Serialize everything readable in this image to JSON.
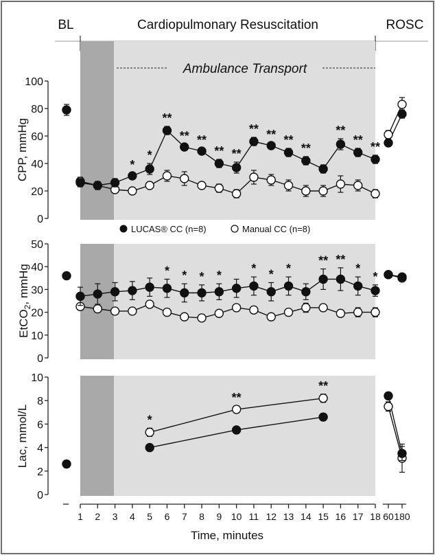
{
  "header": {
    "phases": [
      "BL",
      "Cardiopulmonary Resuscitation",
      "ROSC"
    ],
    "transport_label": "Ambulance Transport"
  },
  "legend": {
    "lucas": "LUCAS® CC (n=8)",
    "manual": "Manual CC (n=8)"
  },
  "x_axis": {
    "label": "Time, minutes",
    "cpr_ticks": [
      "1",
      "2",
      "3",
      "4",
      "5",
      "6",
      "7",
      "8",
      "9",
      "10",
      "11",
      "12",
      "13",
      "14",
      "15",
      "16",
      "17",
      "18"
    ],
    "rosc_ticks": [
      "60",
      "180"
    ]
  },
  "colors": {
    "shade_dark": "#a9a9a9",
    "shade_light": "#dedede",
    "border": "#6e6e6e"
  },
  "chart_data": [
    {
      "type": "line",
      "ylabel": "CPP, mmHg",
      "ylim": [
        0,
        100
      ],
      "yticks": [
        "0",
        "20",
        "40",
        "60",
        "80",
        "100"
      ],
      "baseline": {
        "lucas": 79,
        "lucas_err": 4
      },
      "cpr_minutes": [
        1,
        2,
        3,
        4,
        5,
        6,
        7,
        8,
        9,
        10,
        11,
        12,
        13,
        14,
        15,
        16,
        17,
        18
      ],
      "series": [
        {
          "name": "LUCAS® CC (n=8)",
          "values": [
            26,
            24,
            26,
            31,
            36,
            64,
            52,
            49,
            40,
            37,
            56,
            53,
            48,
            42,
            36,
            54,
            48,
            43
          ],
          "errors": [
            3,
            3,
            3,
            2,
            4,
            3,
            2,
            2,
            3,
            4,
            3,
            2,
            3,
            3,
            3,
            4,
            3,
            3
          ]
        },
        {
          "name": "Manual CC (n=8)",
          "values": [
            27,
            24,
            21,
            20,
            24,
            31,
            29,
            24,
            22,
            18,
            30,
            28,
            24,
            20,
            20,
            25,
            24,
            18
          ],
          "errors": [
            3,
            2,
            2,
            2,
            2,
            4,
            5,
            2,
            3,
            3,
            5,
            4,
            4,
            4,
            4,
            6,
            4,
            3
          ]
        }
      ],
      "rosc": {
        "lucas": [
          55,
          76
        ],
        "lucas_err": [
          2,
          3
        ],
        "manual": [
          61,
          83
        ],
        "manual_err": [
          3,
          5
        ]
      },
      "significance": [
        {
          "min": 4,
          "mark": "*"
        },
        {
          "min": 5,
          "mark": "*"
        },
        {
          "min": 6,
          "mark": "**"
        },
        {
          "min": 7,
          "mark": "**"
        },
        {
          "min": 8,
          "mark": "**"
        },
        {
          "min": 9,
          "mark": "**"
        },
        {
          "min": 10,
          "mark": "**"
        },
        {
          "min": 11,
          "mark": "**"
        },
        {
          "min": 12,
          "mark": "**"
        },
        {
          "min": 13,
          "mark": "**"
        },
        {
          "min": 14,
          "mark": "**"
        },
        {
          "min": 16,
          "mark": "**"
        },
        {
          "min": 17,
          "mark": "**"
        },
        {
          "min": 18,
          "mark": "**"
        }
      ]
    },
    {
      "type": "line",
      "ylabel": "EtCO2, mmHg",
      "ylim": [
        0,
        50
      ],
      "yticks": [
        "0",
        "10",
        "20",
        "30",
        "40",
        "50"
      ],
      "baseline": {
        "lucas": 36,
        "lucas_err": 1
      },
      "cpr_minutes": [
        1,
        2,
        3,
        4,
        5,
        6,
        7,
        8,
        9,
        10,
        11,
        12,
        13,
        14,
        15,
        16,
        17,
        18
      ],
      "series": [
        {
          "name": "LUCAS® CC (n=8)",
          "values": [
            27,
            28,
            29,
            29.5,
            31,
            30.5,
            28.5,
            28.5,
            29,
            30.5,
            31.5,
            29,
            31.5,
            29,
            34.5,
            34.5,
            31.5,
            29.5
          ],
          "errors": [
            4,
            4.5,
            4,
            4,
            4,
            4,
            4,
            3.5,
            3.5,
            4,
            4,
            4,
            4,
            3.5,
            4.5,
            5,
            4,
            2.5
          ]
        },
        {
          "name": "Manual CC (n=8)",
          "values": [
            22.5,
            21.5,
            20.5,
            20.5,
            23.5,
            20,
            18,
            17.5,
            19.5,
            22,
            21,
            18,
            20,
            22,
            22,
            19.5,
            20,
            20
          ],
          "errors": [
            1.5,
            1.5,
            1.5,
            1.5,
            1.5,
            1.5,
            1.5,
            1.5,
            1,
            1,
            1.5,
            1.5,
            1.5,
            2,
            1.5,
            1.5,
            2,
            2
          ]
        }
      ],
      "rosc": {
        "lucas": [
          36.5,
          35.5
        ],
        "lucas_err": [
          0.8,
          0.8
        ],
        "manual": [
          36.5,
          35
        ],
        "manual_err": [
          0.8,
          0.8
        ]
      },
      "significance": [
        {
          "min": 6,
          "mark": "*"
        },
        {
          "min": 7,
          "mark": "*"
        },
        {
          "min": 8,
          "mark": "*"
        },
        {
          "min": 9,
          "mark": "*"
        },
        {
          "min": 11,
          "mark": "*"
        },
        {
          "min": 12,
          "mark": "*"
        },
        {
          "min": 13,
          "mark": "*"
        },
        {
          "min": 15,
          "mark": "**"
        },
        {
          "min": 16,
          "mark": "**"
        },
        {
          "min": 17,
          "mark": "*"
        },
        {
          "min": 18,
          "mark": "*"
        }
      ]
    },
    {
      "type": "line",
      "ylabel": "Lac, mmol/L",
      "ylim": [
        0,
        10
      ],
      "yticks": [
        "0",
        "2",
        "4",
        "6",
        "8",
        "10"
      ],
      "baseline": {
        "lucas": 2.6,
        "lucas_err": 0.3
      },
      "cpr_minutes": [
        5,
        10,
        15
      ],
      "series": [
        {
          "name": "LUCAS® CC (n=8)",
          "values": [
            4.0,
            5.5,
            6.6
          ],
          "errors": [
            0.15,
            0.2,
            0.3
          ]
        },
        {
          "name": "Manual CC (n=8)",
          "values": [
            5.3,
            7.25,
            8.2
          ],
          "errors": [
            0.35,
            0.3,
            0.35
          ]
        }
      ],
      "rosc": {
        "lucas": [
          8.4,
          3.5
        ],
        "lucas_err": [
          0.3,
          0.6
        ],
        "manual": [
          7.5,
          3.1
        ],
        "manual_err": [
          0.4,
          1.2
        ]
      },
      "significance": [
        {
          "min": 5,
          "mark": "*"
        },
        {
          "min": 10,
          "mark": "**"
        },
        {
          "min": 15,
          "mark": "**"
        }
      ]
    }
  ]
}
